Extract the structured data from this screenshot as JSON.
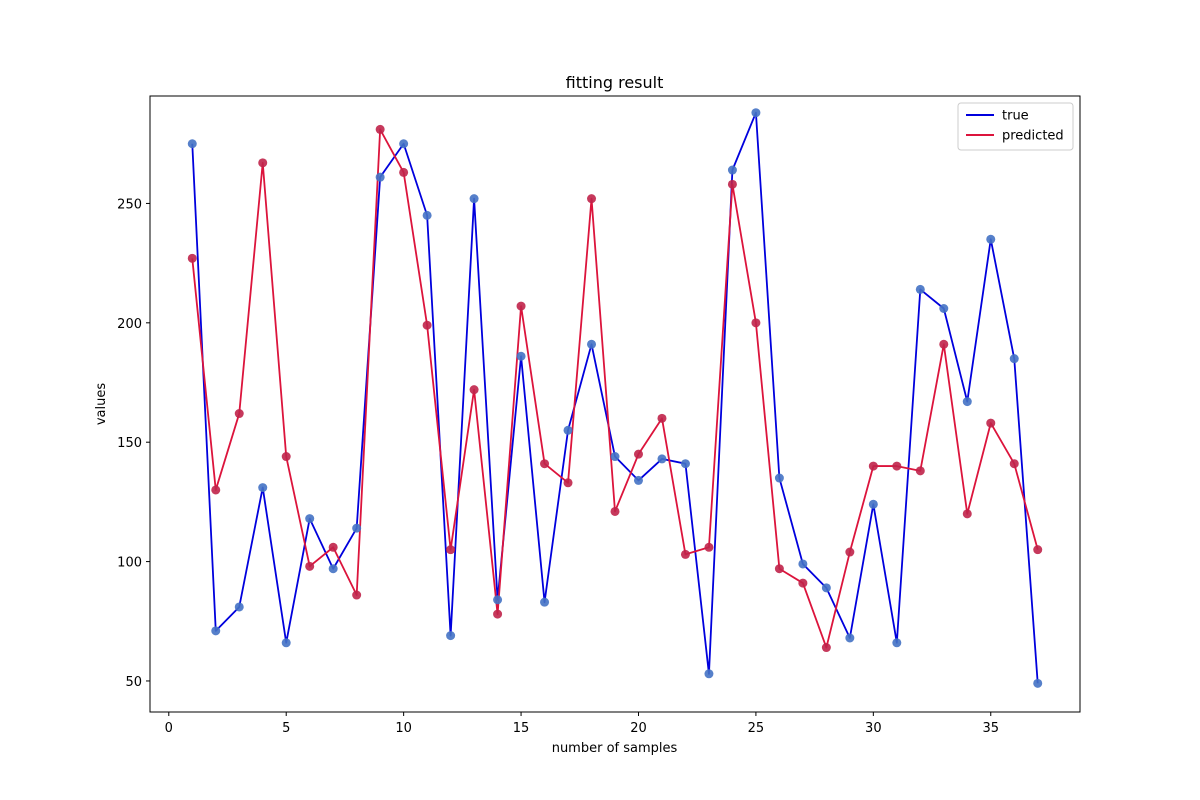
{
  "chart_data": {
    "type": "line",
    "title": "fitting result",
    "xlabel": "number of samples",
    "ylabel": "values",
    "xlim": [
      -0.8,
      38.8
    ],
    "ylim": [
      37,
      295
    ],
    "xticks": [
      0,
      5,
      10,
      15,
      20,
      25,
      30,
      35
    ],
    "yticks": [
      50,
      100,
      150,
      200,
      250
    ],
    "grid": false,
    "legend_position": "upper right",
    "x": [
      1,
      2,
      3,
      4,
      5,
      6,
      7,
      8,
      9,
      10,
      11,
      12,
      13,
      14,
      15,
      16,
      17,
      18,
      19,
      20,
      21,
      22,
      23,
      24,
      25,
      26,
      27,
      28,
      29,
      30,
      31,
      32,
      33,
      34,
      35,
      36,
      37
    ],
    "series": [
      {
        "name": "true",
        "line_color": "#0000dd",
        "marker_color": "#4472c4",
        "values": [
          275,
          71,
          81,
          131,
          66,
          118,
          97,
          114,
          261,
          275,
          245,
          69,
          252,
          84,
          186,
          83,
          155,
          191,
          144,
          134,
          143,
          141,
          53,
          264,
          288,
          135,
          99,
          89,
          68,
          124,
          66,
          214,
          206,
          167,
          235,
          185,
          49
        ]
      },
      {
        "name": "predicted",
        "line_color": "#dc143c",
        "marker_color": "#c0244a",
        "values": [
          227,
          130,
          162,
          267,
          144,
          98,
          106,
          86,
          281,
          263,
          199,
          105,
          172,
          78,
          207,
          141,
          133,
          252,
          121,
          145,
          160,
          103,
          106,
          258,
          200,
          97,
          91,
          64,
          104,
          140,
          140,
          138,
          191,
          120,
          158,
          141,
          105
        ]
      }
    ]
  }
}
